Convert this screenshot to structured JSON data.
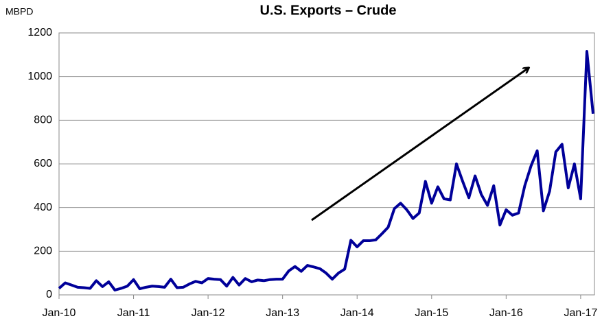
{
  "chart_data": {
    "type": "line",
    "title": "U.S. Exports – Crude",
    "y_label": "MBPD",
    "categories": [
      "Jan-10",
      null,
      null,
      null,
      null,
      null,
      null,
      null,
      null,
      null,
      null,
      null,
      "Jan-11",
      null,
      null,
      null,
      null,
      null,
      null,
      null,
      null,
      null,
      null,
      null,
      "Jan-12",
      null,
      null,
      null,
      null,
      null,
      null,
      null,
      null,
      null,
      null,
      null,
      "Jan-13",
      null,
      null,
      null,
      null,
      null,
      null,
      null,
      null,
      null,
      null,
      null,
      "Jan-14",
      null,
      null,
      null,
      null,
      null,
      null,
      null,
      null,
      null,
      null,
      null,
      "Jan-15",
      null,
      null,
      null,
      null,
      null,
      null,
      null,
      null,
      null,
      null,
      null,
      "Jan-16",
      null,
      null,
      null,
      null,
      null,
      null,
      null,
      null,
      null,
      null,
      null,
      "Jan-17",
      null,
      null
    ],
    "series": [
      {
        "name": "U.S. crude exports",
        "color": "#000099",
        "values": [
          30,
          55,
          45,
          35,
          33,
          30,
          65,
          38,
          60,
          22,
          30,
          40,
          70,
          28,
          35,
          40,
          38,
          35,
          72,
          33,
          35,
          50,
          62,
          55,
          75,
          72,
          70,
          40,
          80,
          45,
          75,
          60,
          68,
          65,
          70,
          72,
          72,
          110,
          130,
          108,
          135,
          128,
          120,
          100,
          72,
          100,
          118,
          250,
          220,
          248,
          248,
          252,
          280,
          310,
          395,
          420,
          390,
          350,
          375,
          520,
          420,
          495,
          440,
          435,
          600,
          520,
          445,
          545,
          460,
          410,
          500,
          320,
          390,
          365,
          375,
          500,
          590,
          660,
          385,
          475,
          655,
          690,
          490,
          600,
          440,
          1115,
          830
        ]
      }
    ],
    "ylim": [
      0,
      1200
    ],
    "yticks": [
      0,
      200,
      400,
      600,
      800,
      1000,
      1200
    ],
    "grid": true
  }
}
